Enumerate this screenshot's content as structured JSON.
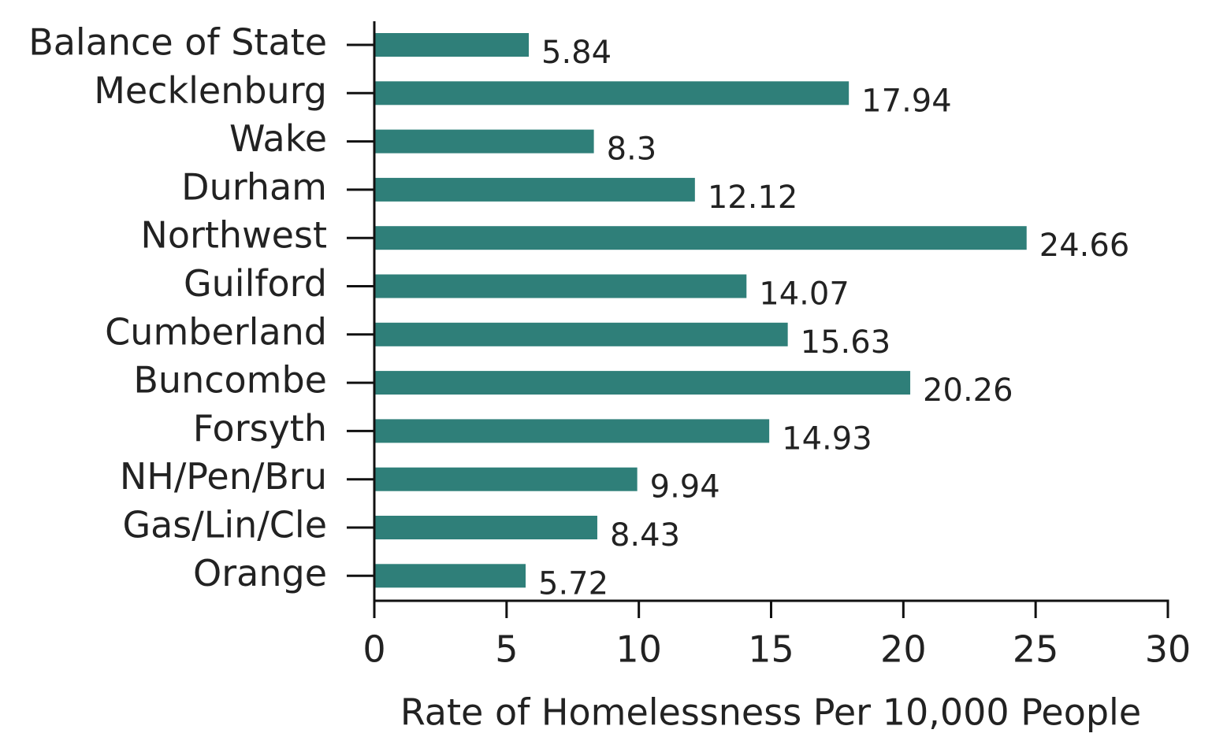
{
  "chart_data": {
    "type": "bar",
    "orientation": "horizontal",
    "x_label": "Rate of Homelessness Per 10,000 People",
    "categories": [
      "Balance of State",
      "Mecklenburg",
      "Wake",
      "Durham",
      "Northwest",
      "Guilford",
      "Cumberland",
      "Buncombe",
      "Forsyth",
      "NH/Pen/Bru",
      "Gas/Lin/Cle",
      "Orange"
    ],
    "values": [
      5.84,
      17.94,
      8.3,
      12.12,
      24.66,
      14.07,
      15.63,
      20.26,
      14.93,
      9.94,
      8.43,
      5.72
    ],
    "color": "#2f7f79",
    "xlim": [
      0,
      30
    ],
    "xticks": [
      0,
      5,
      10,
      15,
      20,
      25,
      30
    ]
  }
}
